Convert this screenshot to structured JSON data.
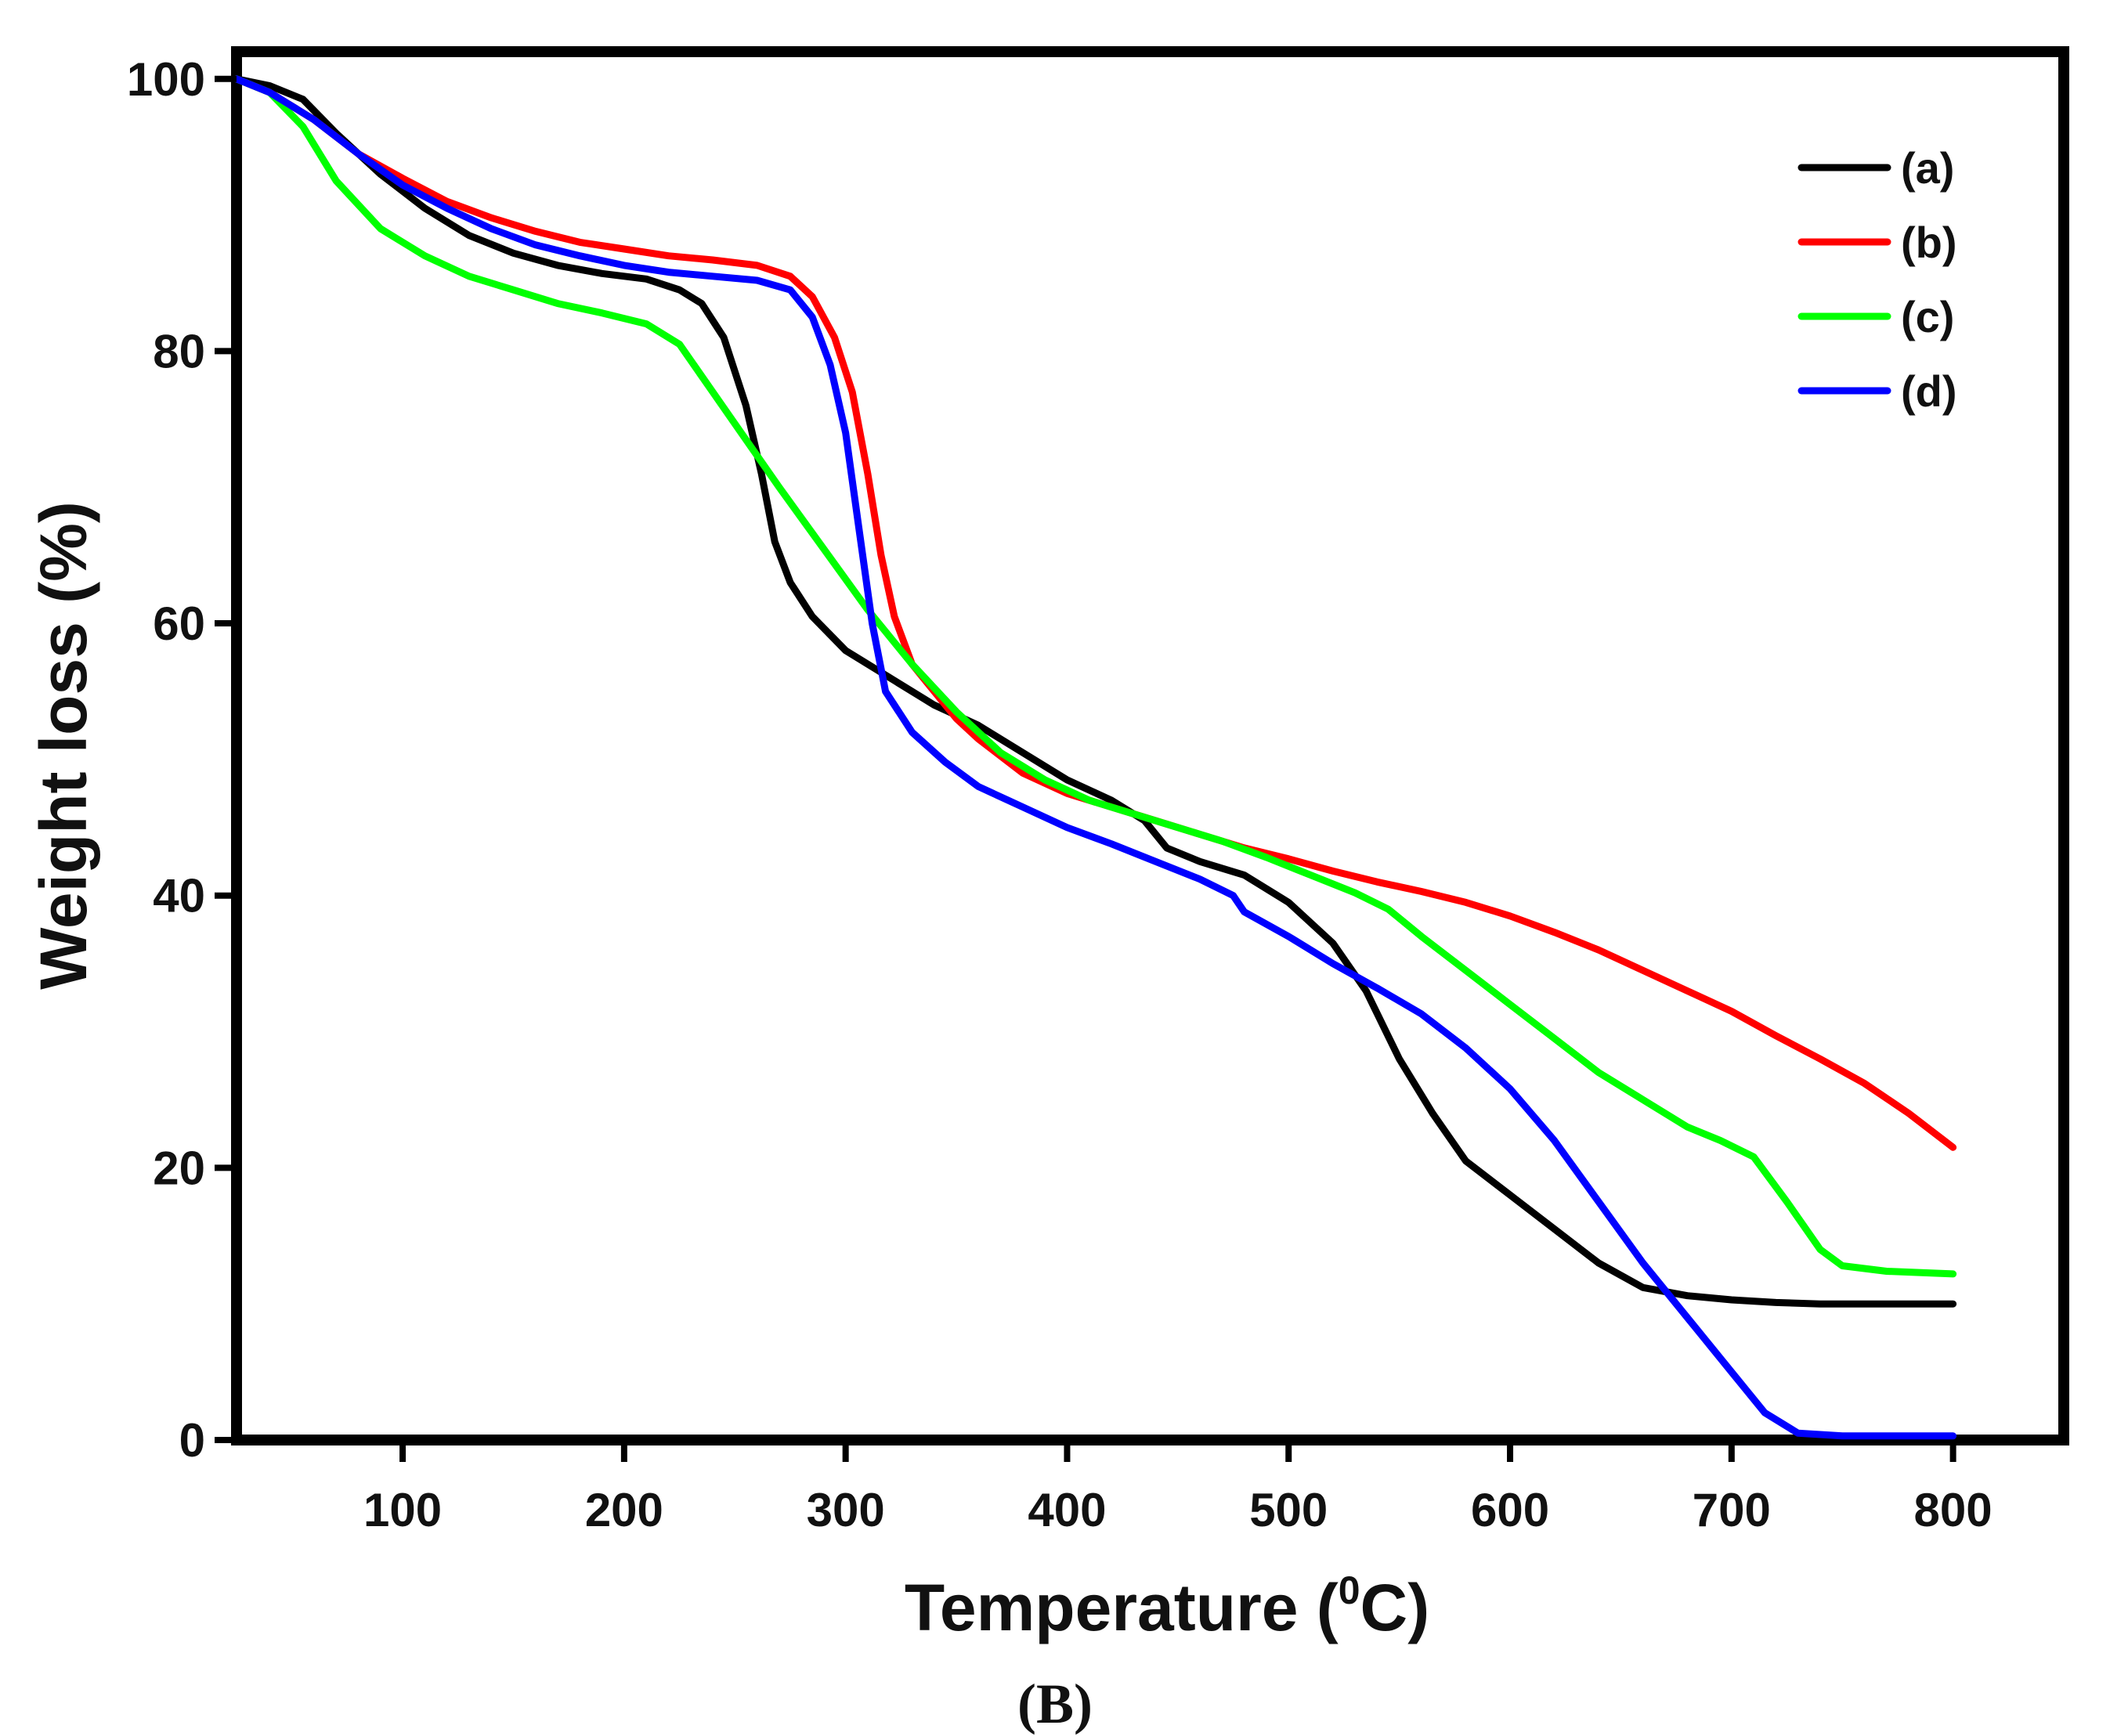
{
  "chart_data": {
    "type": "line",
    "title": "",
    "xlabel": "Temperature (",
    "xlabel_superscript": "0",
    "xlabel_suffix": "C)",
    "ylabel": "Weight loss (%)",
    "xlim": [
      25,
      850
    ],
    "ylim": [
      0,
      102
    ],
    "xticks": [
      100,
      200,
      300,
      400,
      500,
      600,
      700,
      800
    ],
    "yticks": [
      0,
      20,
      40,
      60,
      80,
      100
    ],
    "grid": false,
    "legend_position": "top-right",
    "panel_label": "(B)",
    "series": [
      {
        "name": "(a)",
        "color": "#000000",
        "points": [
          [
            25,
            100
          ],
          [
            40,
            99.5
          ],
          [
            55,
            98.5
          ],
          [
            70,
            96
          ],
          [
            90,
            93
          ],
          [
            110,
            90.5
          ],
          [
            130,
            88.5
          ],
          [
            150,
            87.2
          ],
          [
            170,
            86.3
          ],
          [
            190,
            85.7
          ],
          [
            210,
            85.3
          ],
          [
            225,
            84.5
          ],
          [
            235,
            83.5
          ],
          [
            245,
            81
          ],
          [
            255,
            76
          ],
          [
            262,
            71
          ],
          [
            268,
            66
          ],
          [
            275,
            63
          ],
          [
            285,
            60.5
          ],
          [
            300,
            58
          ],
          [
            320,
            56
          ],
          [
            340,
            54
          ],
          [
            360,
            52.5
          ],
          [
            380,
            50.5
          ],
          [
            400,
            48.5
          ],
          [
            420,
            47
          ],
          [
            435,
            45.5
          ],
          [
            445,
            43.5
          ],
          [
            460,
            42.5
          ],
          [
            480,
            41.5
          ],
          [
            500,
            39.5
          ],
          [
            520,
            36.5
          ],
          [
            535,
            33
          ],
          [
            550,
            28
          ],
          [
            565,
            24
          ],
          [
            580,
            20.5
          ],
          [
            600,
            18
          ],
          [
            620,
            15.5
          ],
          [
            640,
            13
          ],
          [
            660,
            11.2
          ],
          [
            680,
            10.6
          ],
          [
            700,
            10.3
          ],
          [
            720,
            10.1
          ],
          [
            740,
            10
          ],
          [
            800,
            10
          ]
        ]
      },
      {
        "name": "(b)",
        "color": "#ff0000",
        "points": [
          [
            25,
            100
          ],
          [
            40,
            99
          ],
          [
            60,
            97
          ],
          [
            80,
            94.5
          ],
          [
            100,
            92.7
          ],
          [
            120,
            91
          ],
          [
            140,
            89.8
          ],
          [
            160,
            88.8
          ],
          [
            180,
            88
          ],
          [
            200,
            87.5
          ],
          [
            220,
            87
          ],
          [
            240,
            86.7
          ],
          [
            260,
            86.3
          ],
          [
            275,
            85.5
          ],
          [
            285,
            84
          ],
          [
            295,
            81
          ],
          [
            303,
            77
          ],
          [
            310,
            71
          ],
          [
            316,
            65
          ],
          [
            322,
            60.5
          ],
          [
            330,
            57
          ],
          [
            340,
            55
          ],
          [
            350,
            53
          ],
          [
            360,
            51.5
          ],
          [
            380,
            49
          ],
          [
            400,
            47.5
          ],
          [
            420,
            46.5
          ],
          [
            440,
            45.5
          ],
          [
            460,
            44.5
          ],
          [
            480,
            43.5
          ],
          [
            500,
            42.7
          ],
          [
            520,
            41.8
          ],
          [
            540,
            41
          ],
          [
            560,
            40.3
          ],
          [
            580,
            39.5
          ],
          [
            600,
            38.5
          ],
          [
            620,
            37.3
          ],
          [
            640,
            36
          ],
          [
            660,
            34.5
          ],
          [
            680,
            33
          ],
          [
            700,
            31.5
          ],
          [
            720,
            29.7
          ],
          [
            740,
            28
          ],
          [
            760,
            26.2
          ],
          [
            780,
            24
          ],
          [
            800,
            21.5
          ]
        ]
      },
      {
        "name": "(c)",
        "color": "#00ff00",
        "points": [
          [
            25,
            100
          ],
          [
            40,
            99
          ],
          [
            55,
            96.5
          ],
          [
            70,
            92.5
          ],
          [
            90,
            89
          ],
          [
            110,
            87
          ],
          [
            130,
            85.5
          ],
          [
            150,
            84.5
          ],
          [
            170,
            83.5
          ],
          [
            190,
            82.8
          ],
          [
            210,
            82
          ],
          [
            225,
            80.5
          ],
          [
            240,
            77
          ],
          [
            255,
            73.5
          ],
          [
            270,
            70
          ],
          [
            290,
            65.5
          ],
          [
            310,
            61
          ],
          [
            330,
            57
          ],
          [
            350,
            53.5
          ],
          [
            370,
            50.5
          ],
          [
            390,
            48.5
          ],
          [
            410,
            47
          ],
          [
            430,
            46
          ],
          [
            450,
            45
          ],
          [
            470,
            44
          ],
          [
            490,
            42.8
          ],
          [
            510,
            41.5
          ],
          [
            530,
            40.2
          ],
          [
            545,
            39
          ],
          [
            560,
            37
          ],
          [
            580,
            34.5
          ],
          [
            600,
            32
          ],
          [
            620,
            29.5
          ],
          [
            640,
            27
          ],
          [
            660,
            25
          ],
          [
            680,
            23
          ],
          [
            695,
            22
          ],
          [
            710,
            20.8
          ],
          [
            725,
            17.5
          ],
          [
            740,
            14
          ],
          [
            750,
            12.8
          ],
          [
            770,
            12.4
          ],
          [
            800,
            12.2
          ]
        ]
      },
      {
        "name": "(d)",
        "color": "#0000ff",
        "points": [
          [
            25,
            100
          ],
          [
            40,
            99
          ],
          [
            60,
            97
          ],
          [
            80,
            94.5
          ],
          [
            100,
            92.2
          ],
          [
            120,
            90.5
          ],
          [
            140,
            89
          ],
          [
            160,
            87.8
          ],
          [
            180,
            87
          ],
          [
            200,
            86.3
          ],
          [
            220,
            85.8
          ],
          [
            240,
            85.5
          ],
          [
            260,
            85.2
          ],
          [
            275,
            84.5
          ],
          [
            285,
            82.5
          ],
          [
            293,
            79
          ],
          [
            300,
            74
          ],
          [
            306,
            67
          ],
          [
            312,
            60
          ],
          [
            318,
            55
          ],
          [
            330,
            52
          ],
          [
            345,
            49.8
          ],
          [
            360,
            48
          ],
          [
            380,
            46.5
          ],
          [
            400,
            45
          ],
          [
            420,
            43.8
          ],
          [
            440,
            42.5
          ],
          [
            460,
            41.2
          ],
          [
            475,
            40
          ],
          [
            480,
            38.8
          ],
          [
            500,
            37
          ],
          [
            520,
            35
          ],
          [
            540,
            33.2
          ],
          [
            560,
            31.3
          ],
          [
            580,
            28.8
          ],
          [
            600,
            25.8
          ],
          [
            620,
            22
          ],
          [
            640,
            17.5
          ],
          [
            660,
            13
          ],
          [
            680,
            9
          ],
          [
            700,
            5
          ],
          [
            715,
            2
          ],
          [
            730,
            0.5
          ],
          [
            750,
            0.3
          ],
          [
            800,
            0.3
          ]
        ]
      }
    ]
  }
}
